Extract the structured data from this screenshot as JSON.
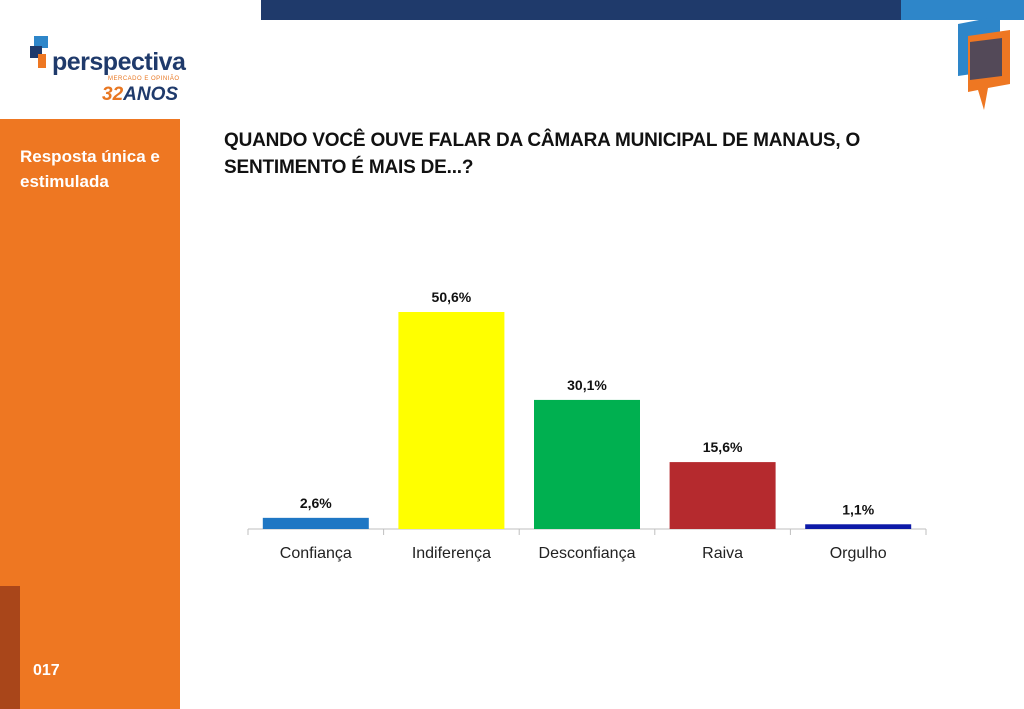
{
  "brand": {
    "name": "perspectiva",
    "tagline": "MERCADO E OPINIÃO",
    "anniversary_number": "32",
    "anniversary_text": "ANOS"
  },
  "sidebar": {
    "label": "Resposta única e estimulada",
    "page_number": "017"
  },
  "question": "QUANDO VOCÊ OUVE FALAR DA CÂMARA MUNICIPAL DE MANAUS, O SENTIMENTO É MAIS DE...?",
  "colors": {
    "navy": "#1f3a6b",
    "blue": "#2e86c9",
    "orange": "#ee7722",
    "dark_orange": "#a9461a"
  },
  "chart_data": {
    "type": "bar",
    "categories": [
      "Confiança",
      "Indiferença",
      "Desconfiança",
      "Raiva",
      "Orgulho"
    ],
    "values": [
      2.6,
      50.6,
      30.1,
      15.6,
      1.1
    ],
    "value_labels": [
      "2,6%",
      "50,6%",
      "30,1%",
      "15,6%",
      "1,1%"
    ],
    "colors": [
      "#1f77c4",
      "#ffff00",
      "#00b050",
      "#b52a2e",
      "#0d1aa8"
    ],
    "ylim": [
      0,
      50.6
    ],
    "grid": false,
    "legend": "none"
  }
}
